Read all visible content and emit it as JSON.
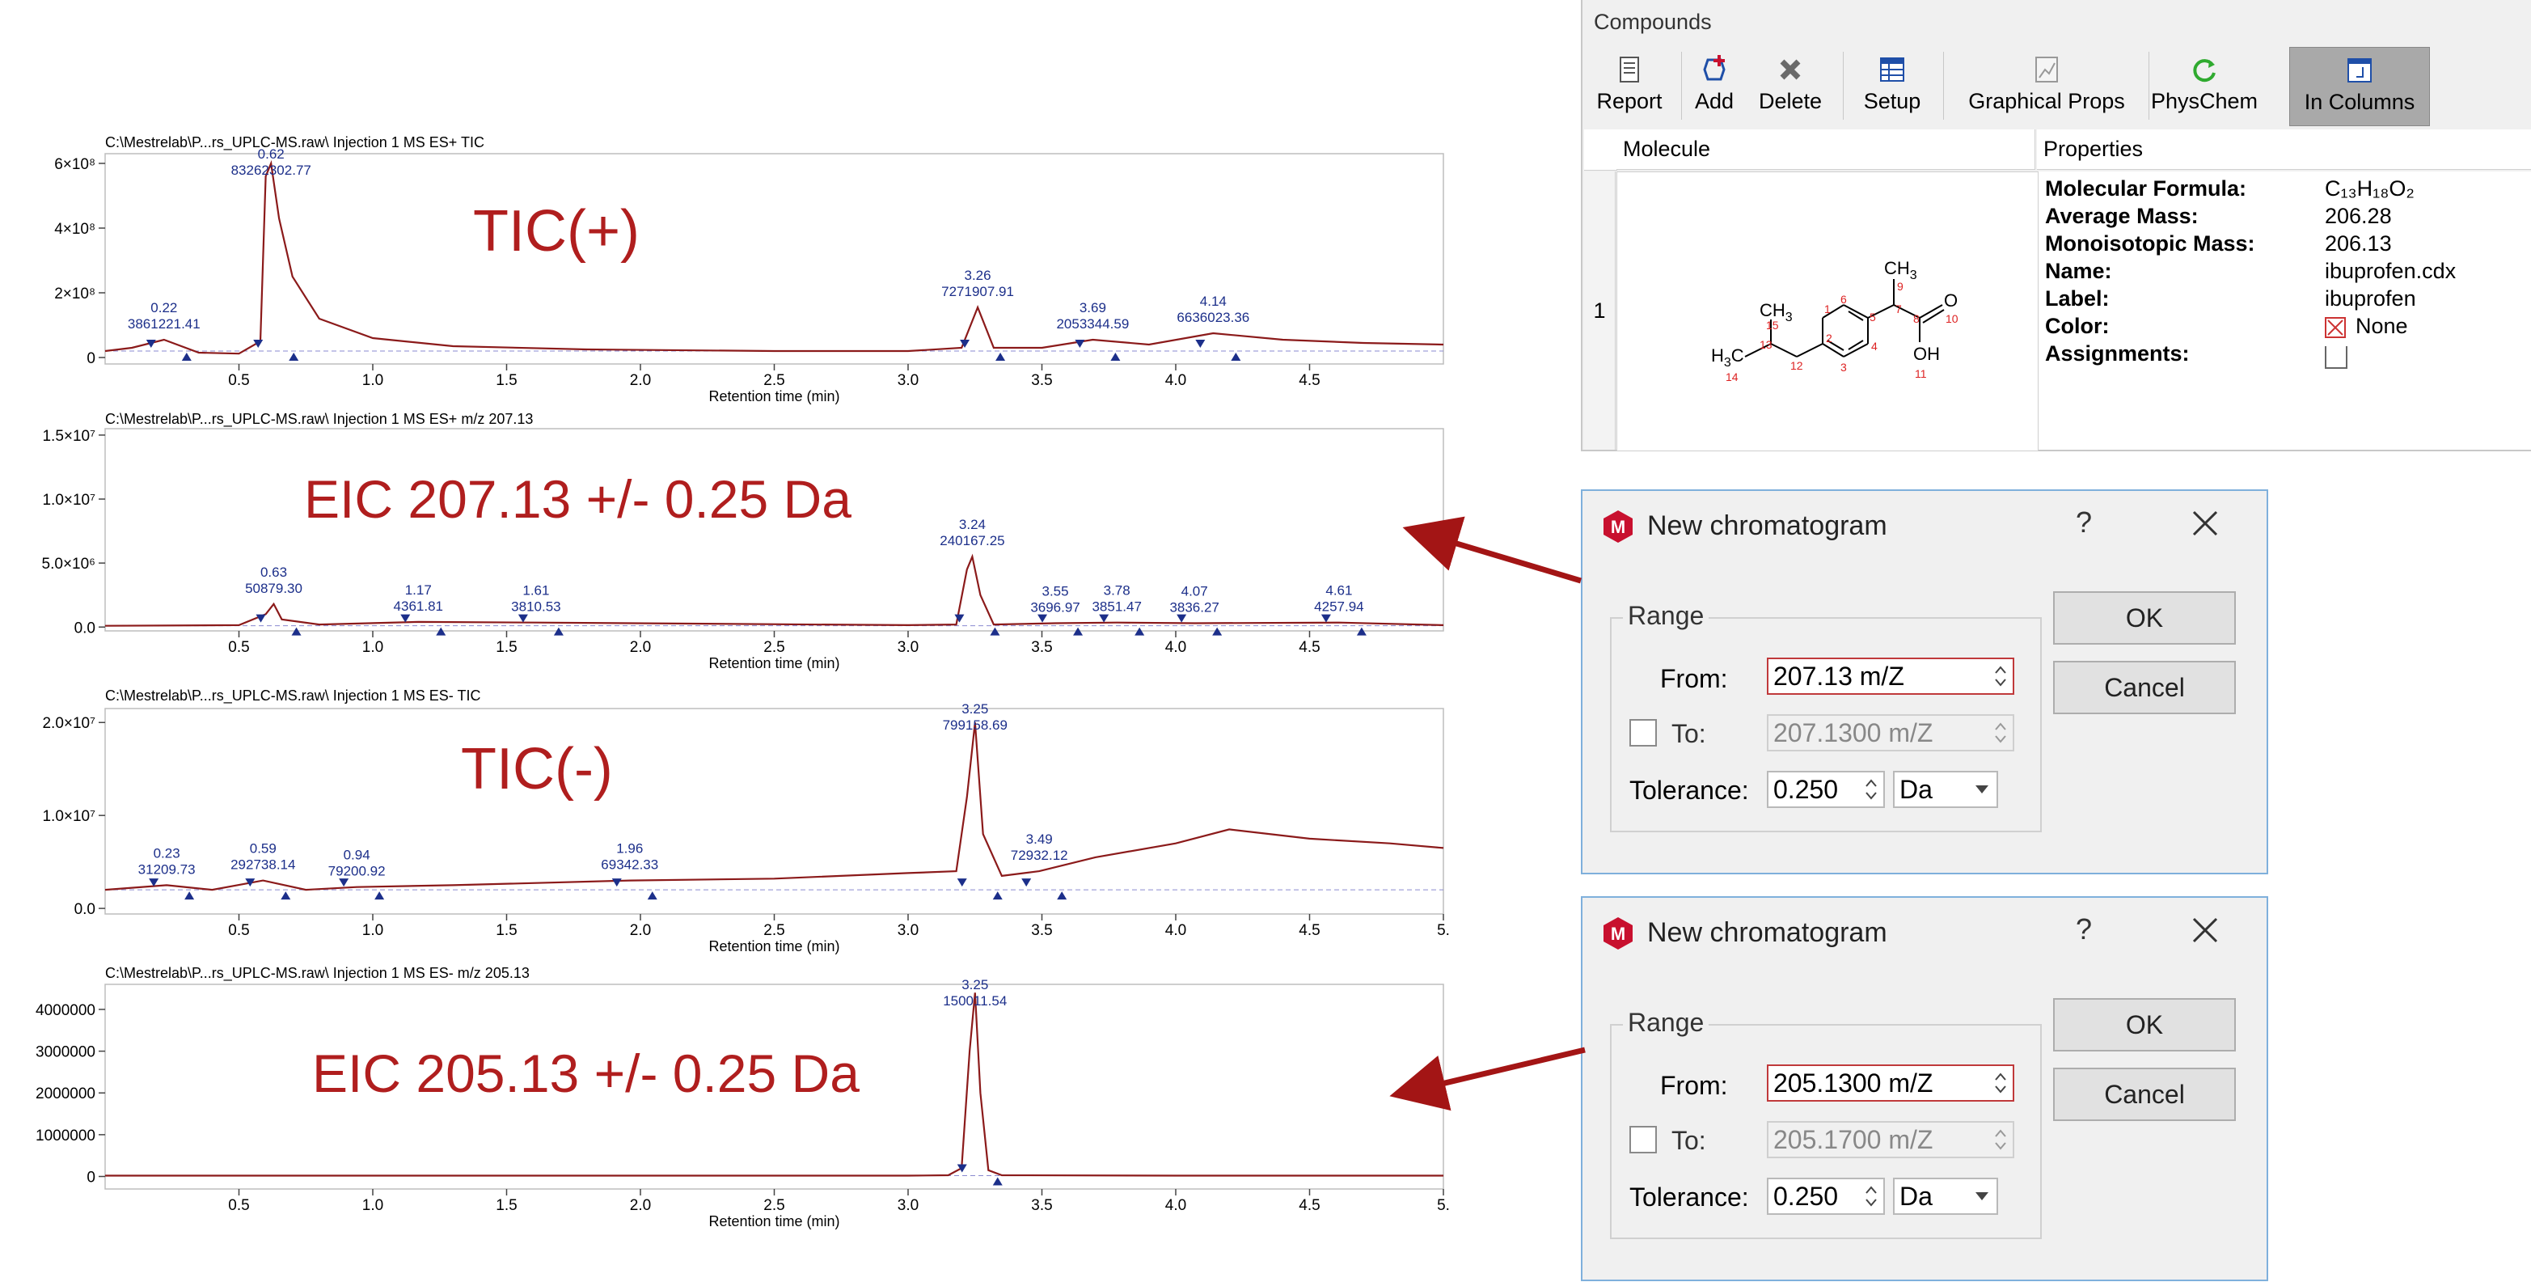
{
  "chart_data": [
    {
      "type": "line",
      "title": "C:\\Mestrelab\\P...rs_UPLC-MS.raw\\ Injection 1 MS ES+ TIC",
      "annotation": "TIC(+)",
      "xlabel": "Retention time (min)",
      "xticks": [
        "0.5",
        "1.0",
        "1.5",
        "2.0",
        "2.5",
        "3.0",
        "3.5",
        "4.0",
        "4.5"
      ],
      "yticks": [
        "0",
        "2×10⁸",
        "4×10⁸",
        "6×10⁸"
      ],
      "xlim": [
        0,
        5.0
      ],
      "ylim": [
        -20000000.0,
        630000000.0
      ],
      "peaks": [
        {
          "rt": 0.22,
          "area": "3861221.41"
        },
        {
          "rt": 0.62,
          "area": "83262302.77"
        },
        {
          "rt": 3.26,
          "area": "7271907.91"
        },
        {
          "rt": 3.69,
          "area": "2053344.59"
        },
        {
          "rt": 4.14,
          "area": "6636023.36"
        }
      ],
      "series": [
        {
          "x": [
            0.0,
            0.1,
            0.22,
            0.35,
            0.5,
            0.58,
            0.6,
            0.62,
            0.65,
            0.7,
            0.8,
            1.0,
            1.3,
            1.8,
            2.5,
            3.0,
            3.2,
            3.26,
            3.32,
            3.5,
            3.69,
            3.9,
            4.14,
            4.4,
            4.7,
            5.0
          ],
          "y": [
            20000000.0,
            30000000.0,
            55000000.0,
            15000000.0,
            12000000.0,
            50000000.0,
            560000000.0,
            600000000.0,
            430000000.0,
            250000000.0,
            120000000.0,
            60000000.0,
            35000000.0,
            25000000.0,
            20000000.0,
            20000000.0,
            30000000.0,
            155000000.0,
            30000000.0,
            30000000.0,
            55000000.0,
            40000000.0,
            75000000.0,
            55000000.0,
            45000000.0,
            40000000.0
          ]
        }
      ]
    },
    {
      "type": "line",
      "title": "C:\\Mestrelab\\P...rs_UPLC-MS.raw\\ Injection 1 MS ES+  m/z 207.13",
      "annotation": "EIC 207.13 +/- 0.25 Da",
      "xlabel": "Retention time (min)",
      "xticks": [
        "0.5",
        "1.0",
        "1.5",
        "2.0",
        "2.5",
        "3.0",
        "3.5",
        "4.0",
        "4.5"
      ],
      "yticks": [
        "0.0",
        "5.0×10⁶",
        "1.0×10⁷",
        "1.5×10⁷"
      ],
      "xlim": [
        0,
        5.0
      ],
      "ylim": [
        -300000.0,
        15500000.0
      ],
      "peaks": [
        {
          "rt": 0.63,
          "area": "50879.30"
        },
        {
          "rt": 1.17,
          "area": "4361.81"
        },
        {
          "rt": 1.61,
          "area": "3810.53"
        },
        {
          "rt": 3.24,
          "area": "240167.25"
        },
        {
          "rt": 3.55,
          "area": "3696.97"
        },
        {
          "rt": 3.78,
          "area": "3851.47"
        },
        {
          "rt": 4.07,
          "area": "3836.27"
        },
        {
          "rt": 4.61,
          "area": "4257.94"
        }
      ],
      "series": [
        {
          "x": [
            0.0,
            0.5,
            0.6,
            0.63,
            0.66,
            0.8,
            1.17,
            1.61,
            3.0,
            3.18,
            3.22,
            3.24,
            3.27,
            3.32,
            3.55,
            3.78,
            4.07,
            4.61,
            5.0
          ],
          "y": [
            100000.0,
            150000.0,
            1000000.0,
            1800000.0,
            600000.0,
            200000.0,
            400000.0,
            350000.0,
            150000.0,
            200000.0,
            4500000.0,
            5500000.0,
            2500000.0,
            200000.0,
            300000.0,
            350000.0,
            300000.0,
            350000.0,
            150000.0
          ]
        }
      ]
    },
    {
      "type": "line",
      "title": "C:\\Mestrelab\\P...rs_UPLC-MS.raw\\ Injection 1 MS ES- TIC",
      "annotation": "TIC(-)",
      "xlabel": "Retention time (min)",
      "xticks": [
        "0.5",
        "1.0",
        "1.5",
        "2.0",
        "2.5",
        "3.0",
        "3.5",
        "4.0",
        "4.5",
        "5."
      ],
      "yticks": [
        "0.0",
        "1.0×10⁷",
        "2.0×10⁷"
      ],
      "xlim": [
        0,
        5.0
      ],
      "ylim": [
        -600000.0,
        21500000.0
      ],
      "peaks": [
        {
          "rt": 0.23,
          "area": "31209.73"
        },
        {
          "rt": 0.59,
          "area": "292738.14"
        },
        {
          "rt": 0.94,
          "area": "79200.92"
        },
        {
          "rt": 1.96,
          "area": "69342.33"
        },
        {
          "rt": 3.25,
          "area": "799158.69"
        },
        {
          "rt": 3.49,
          "area": "72932.12"
        }
      ],
      "series": [
        {
          "x": [
            0.0,
            0.23,
            0.4,
            0.59,
            0.75,
            0.94,
            1.3,
            1.96,
            2.5,
            3.0,
            3.18,
            3.22,
            3.25,
            3.28,
            3.35,
            3.49,
            3.7,
            4.0,
            4.2,
            4.5,
            4.8,
            5.0
          ],
          "y": [
            2000000.0,
            2500000.0,
            2000000.0,
            3000000.0,
            2000000.0,
            2300000.0,
            2500000.0,
            3000000.0,
            3200000.0,
            3800000.0,
            4000000.0,
            12000000.0,
            20000000.0,
            8000000.0,
            3500000.0,
            4000000.0,
            5500000.0,
            7000000.0,
            8500000.0,
            7500000.0,
            7000000.0,
            6500000.0
          ]
        }
      ]
    },
    {
      "type": "line",
      "title": "C:\\Mestrelab\\P...rs_UPLC-MS.raw\\ Injection 1 MS ES-  m/z 205.13",
      "annotation": "EIC 205.13 +/- 0.25 Da",
      "xlabel": "Retention time (min)",
      "xticks": [
        "0.5",
        "1.0",
        "1.5",
        "2.0",
        "2.5",
        "3.0",
        "3.5",
        "4.0",
        "4.5",
        "5."
      ],
      "yticks": [
        "0",
        "1000000",
        "2000000",
        "3000000",
        "4000000"
      ],
      "xlim": [
        0,
        5.0
      ],
      "ylim": [
        -300000.0,
        4600000.0
      ],
      "peaks": [
        {
          "rt": 3.25,
          "area": "150011.54"
        }
      ],
      "series": [
        {
          "x": [
            0.0,
            1.0,
            2.0,
            3.0,
            3.15,
            3.2,
            3.23,
            3.25,
            3.27,
            3.3,
            3.35,
            4.0,
            5.0
          ],
          "y": [
            20000.0,
            20000.0,
            20000.0,
            20000.0,
            30000.0,
            200000.0,
            3000000.0,
            4400000.0,
            2000000.0,
            150000.0,
            30000.0,
            20000.0,
            20000.0
          ]
        }
      ]
    }
  ],
  "compounds": {
    "title": "Compounds",
    "toolbar": [
      {
        "label": "Report",
        "icon": "report-icon"
      },
      {
        "label": "Add",
        "icon": "add-icon"
      },
      {
        "label": "Delete",
        "icon": "delete-icon"
      },
      {
        "label": "Setup",
        "icon": "setup-icon"
      },
      {
        "label": "Graphical Props",
        "icon": "graphical-props-icon"
      },
      {
        "label": "PhysChem",
        "icon": "physchem-icon"
      },
      {
        "label": "In Columns",
        "icon": "in-columns-icon"
      }
    ],
    "columns": {
      "molecule": "Molecule",
      "properties": "Properties"
    },
    "row_number": "1",
    "molecule_labels": {
      "ch3_top": "CH",
      "ch3_top_sub": "3",
      "ch3_left": "CH",
      "ch3_left_sub": "3",
      "h3c": "H",
      "h3c_sub": "3",
      "h3c_c": "C",
      "o": "O",
      "oh": "OH",
      "atom_numbers": [
        "1",
        "2",
        "3",
        "4",
        "5",
        "6",
        "7",
        "8",
        "9",
        "10",
        "11",
        "12",
        "13",
        "14",
        "15"
      ]
    },
    "properties": [
      {
        "key": "Molecular Formula:",
        "value": "C₁₃H₁₈O₂"
      },
      {
        "key": "Average Mass:",
        "value": "206.28"
      },
      {
        "key": "Monoisotopic Mass:",
        "value": "206.13"
      },
      {
        "key": "Name:",
        "value": "ibuprofen.cdx"
      },
      {
        "key": "Label:",
        "value": "ibuprofen"
      },
      {
        "key": "Color:",
        "value": "None"
      },
      {
        "key": "Assignments:",
        "value": ""
      }
    ]
  },
  "dialogs": [
    {
      "title": "New chromatogram",
      "help": "?",
      "range_label": "Range",
      "from_label": "From:",
      "from_value": "207.13 m/Z",
      "to_label": "To:",
      "to_value": "207.1300 m/Z",
      "tolerance_label": "Tolerance:",
      "tolerance_value": "0.250",
      "unit": "Da",
      "ok": "OK",
      "cancel": "Cancel"
    },
    {
      "title": "New chromatogram",
      "help": "?",
      "range_label": "Range",
      "from_label": "From:",
      "from_value": "205.1300 m/Z",
      "to_label": "To:",
      "to_value": "205.1700 m/Z",
      "tolerance_label": "Tolerance:",
      "tolerance_value": "0.250",
      "unit": "Da",
      "ok": "OK",
      "cancel": "Cancel"
    }
  ],
  "colors": {
    "trace": "#8b1a1a",
    "annotation": "#b01e1e",
    "peak_label": "#1c2f8a",
    "arrow": "#a31515",
    "dialog_border": "#7fb0dc",
    "focus_border": "#c0393b"
  }
}
